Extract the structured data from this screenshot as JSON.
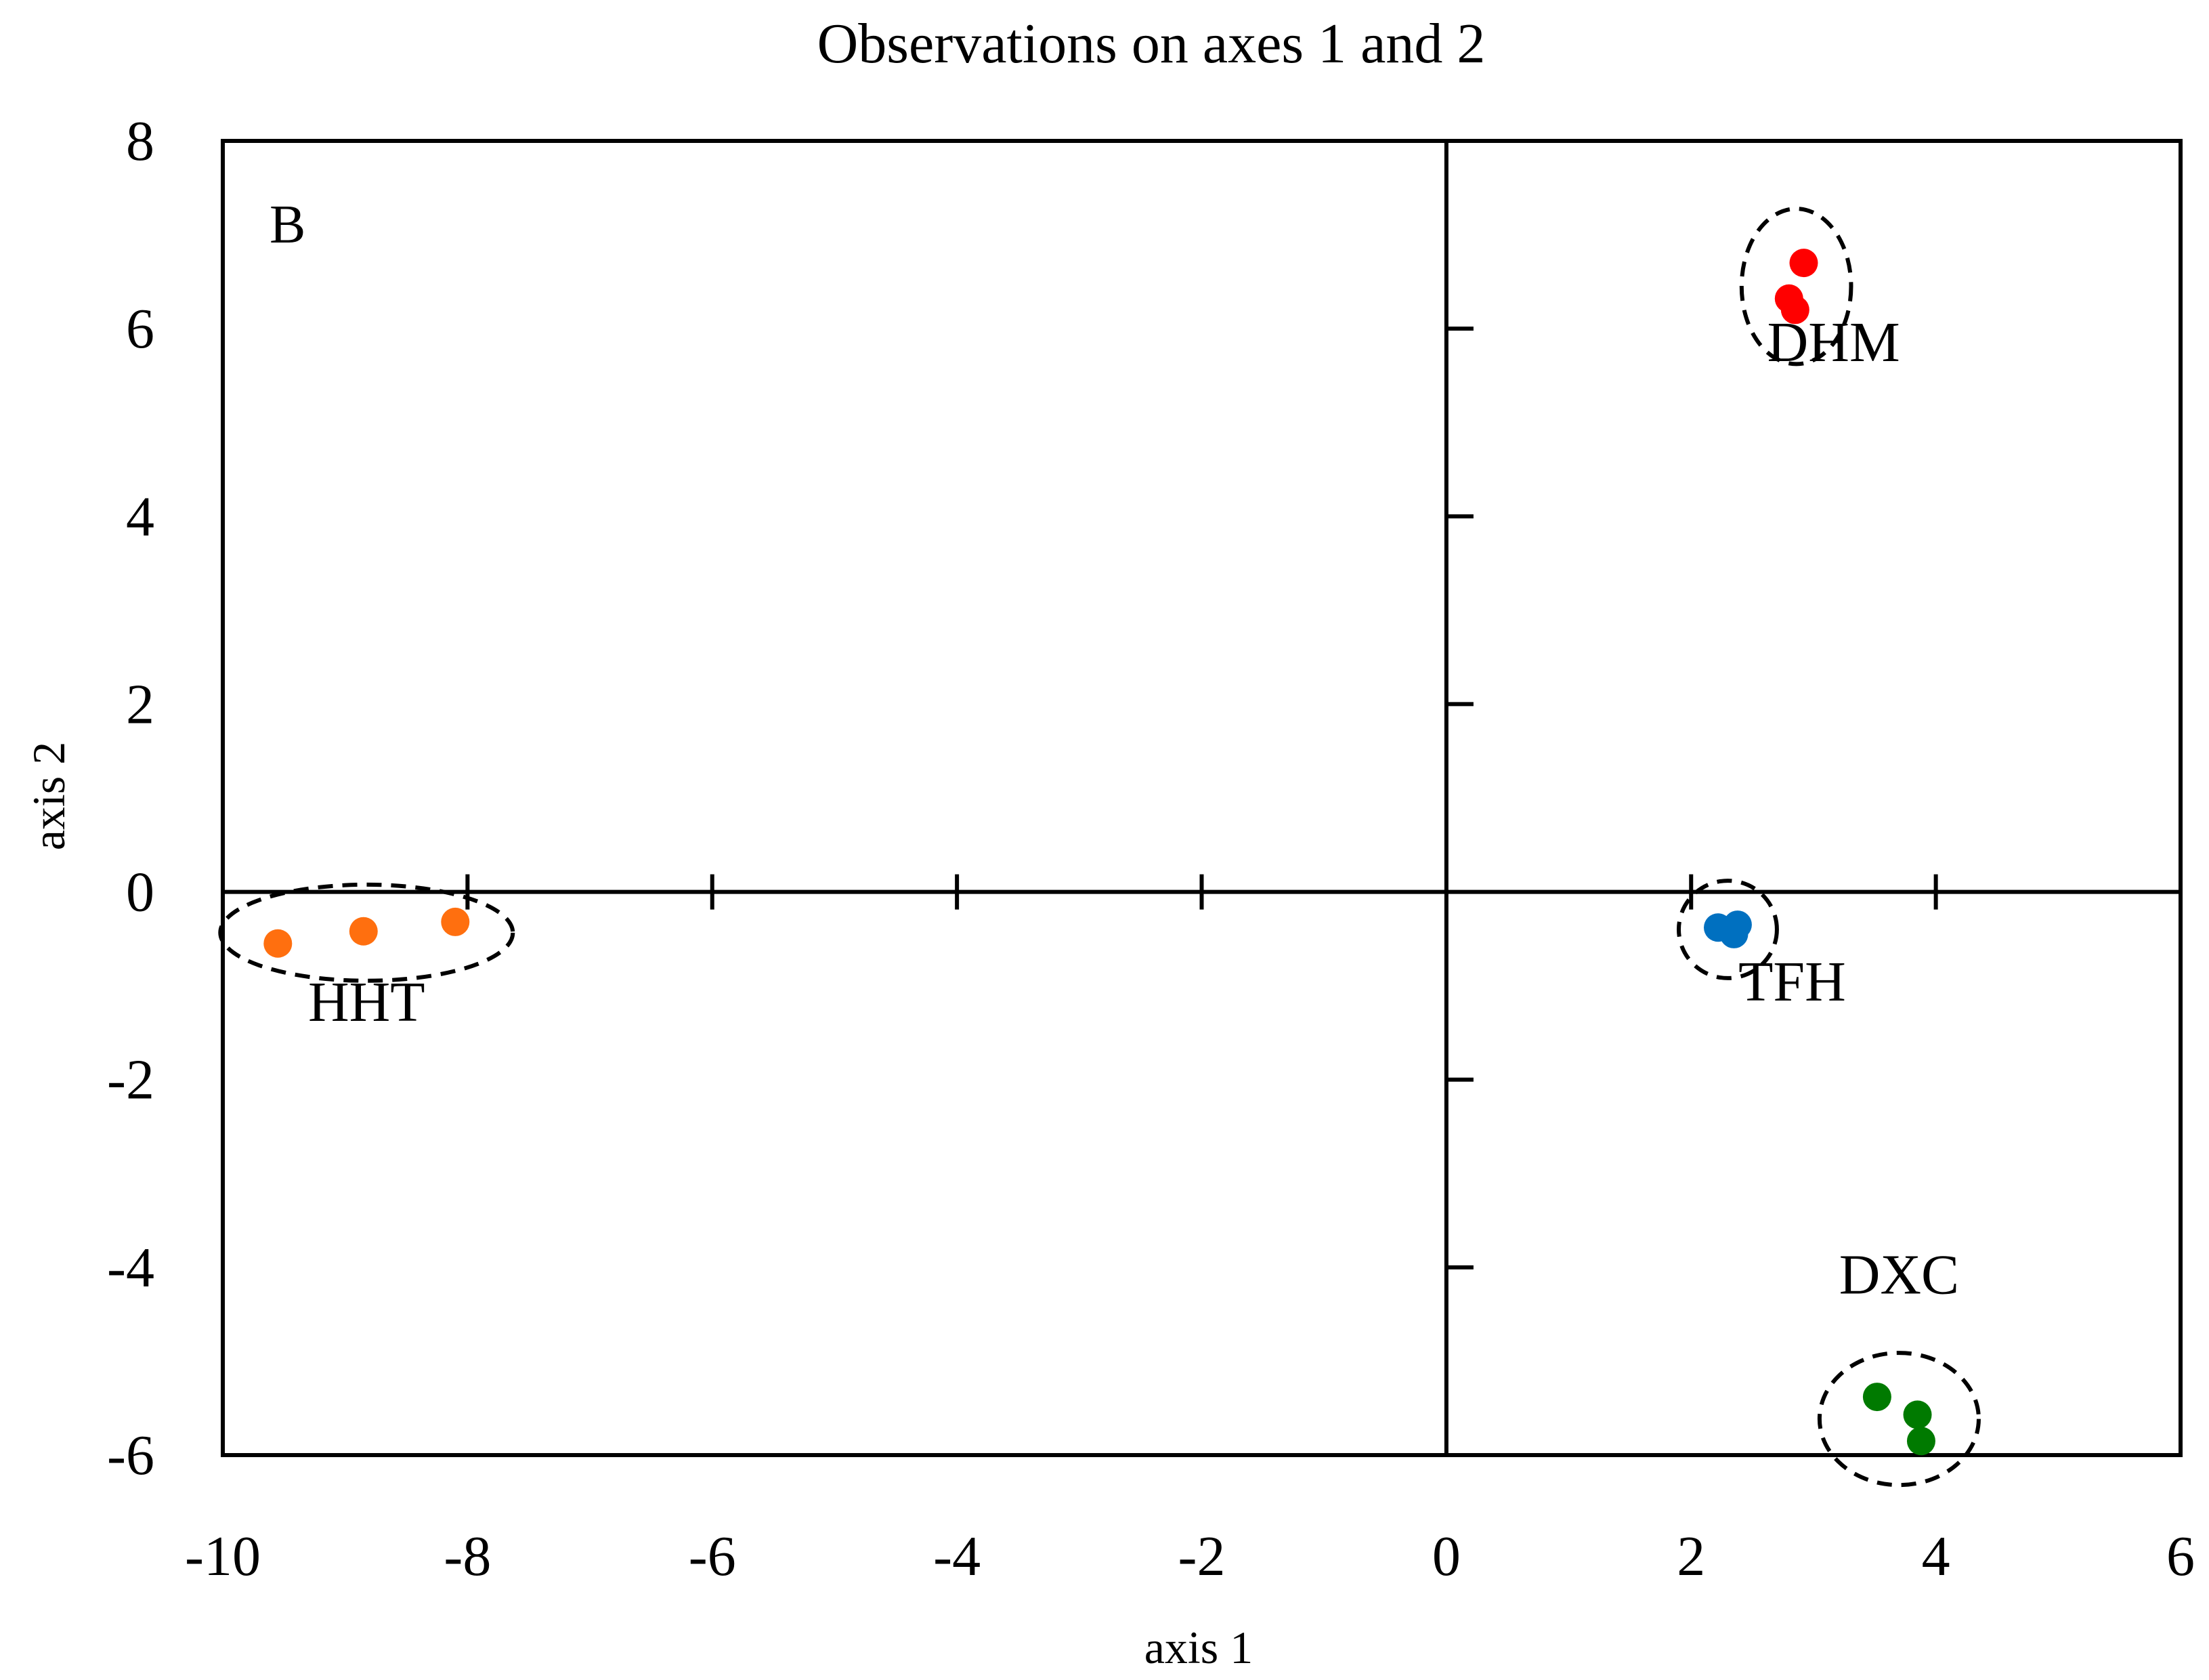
{
  "chart_data": {
    "type": "scatter",
    "title": "Observations on axes 1 and 2",
    "panel_label": "B",
    "xlabel": "axis 1",
    "ylabel": "axis 2",
    "xlim": [
      -10,
      6
    ],
    "ylim": [
      -6,
      8
    ],
    "x_ticks": [
      -10,
      -8,
      -6,
      -4,
      -2,
      0,
      2,
      4,
      6
    ],
    "y_ticks": [
      -6,
      -4,
      -2,
      0,
      2,
      4,
      6,
      8
    ],
    "series": [
      {
        "name": "HHT",
        "color": "#ff6f0f",
        "points": [
          [
            -9.55,
            -0.55
          ],
          [
            -8.85,
            -0.42
          ],
          [
            -8.1,
            -0.32
          ]
        ]
      },
      {
        "name": "DHM",
        "color": "#ff0000",
        "points": [
          [
            2.8,
            6.32
          ],
          [
            2.85,
            6.2
          ],
          [
            2.92,
            6.7
          ]
        ]
      },
      {
        "name": "TFH",
        "color": "#0070c0",
        "points": [
          [
            2.22,
            -0.38
          ],
          [
            2.35,
            -0.45
          ],
          [
            2.38,
            -0.35
          ]
        ]
      },
      {
        "name": "DXC",
        "color": "#007a00",
        "points": [
          [
            3.52,
            -5.38
          ],
          [
            3.85,
            -5.57
          ],
          [
            3.88,
            -5.85
          ]
        ]
      }
    ]
  }
}
